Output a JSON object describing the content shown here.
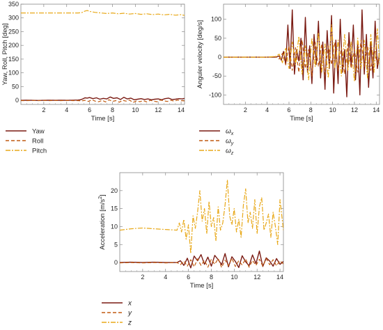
{
  "chart_data": [
    {
      "type": "line",
      "title": "",
      "xlabel": "Time [s]",
      "ylabel": "Yaw, Roll, Pitch [deg]",
      "xlim": [
        0,
        14.3
      ],
      "ylim": [
        -15,
        350
      ],
      "xticks": [
        2,
        4,
        6,
        8,
        10,
        12,
        14
      ],
      "yticks": [
        0,
        50,
        100,
        150,
        200,
        250,
        300,
        350
      ],
      "legend_position": "below",
      "series": [
        {
          "name": "Yaw",
          "color": "#7a1a12",
          "dash": "solid",
          "x": [
            0,
            0.5,
            1,
            1.5,
            2,
            2.5,
            3,
            3.5,
            4,
            4.5,
            5,
            5.2,
            5.4,
            5.6,
            5.8,
            6,
            6.3,
            6.6,
            6.9,
            7.2,
            7.5,
            7.8,
            8.1,
            8.4,
            8.7,
            9,
            9.3,
            9.6,
            9.9,
            10.2,
            10.5,
            10.8,
            11.1,
            11.4,
            11.7,
            12,
            12.3,
            12.6,
            12.9,
            13.2,
            13.5,
            13.8,
            14.1,
            14.3
          ],
          "y": [
            0,
            0.5,
            0,
            -0.5,
            0,
            0.5,
            0,
            0.5,
            0,
            0.5,
            1,
            2,
            5,
            9,
            8,
            10,
            6,
            9,
            4,
            7,
            5,
            12,
            7,
            9,
            3,
            11,
            5,
            8,
            2,
            4,
            6,
            3,
            5,
            2,
            4,
            5,
            2,
            6,
            8,
            3,
            4,
            6,
            5,
            7
          ]
        },
        {
          "name": "Roll",
          "color": "#c05a10",
          "dash": "5,3",
          "x": [
            0,
            0.5,
            1,
            1.5,
            2,
            2.5,
            3,
            3.5,
            4,
            4.5,
            5,
            5.3,
            5.6,
            5.9,
            6.2,
            6.5,
            6.8,
            7.1,
            7.4,
            7.7,
            8,
            8.3,
            8.6,
            8.9,
            9.2,
            9.5,
            9.8,
            10.1,
            10.4,
            10.7,
            11,
            11.3,
            11.6,
            11.9,
            12.2,
            12.5,
            12.8,
            13.1,
            13.4,
            13.7,
            14,
            14.3
          ],
          "y": [
            -1,
            -1,
            -0.5,
            -1,
            -0.5,
            -1,
            -0.5,
            -1,
            -0.5,
            -1,
            -1,
            -2,
            0,
            -4,
            2,
            -3,
            -5,
            0,
            -6,
            2,
            -4,
            -1,
            -7,
            0,
            -3,
            1,
            -8,
            -2,
            -5,
            -1,
            -6,
            0,
            -3,
            -5,
            1,
            -2,
            -4,
            0,
            -3,
            1,
            -1,
            -2
          ]
        },
        {
          "name": "Pitch",
          "color": "#e8a818",
          "dash": "7,2,2,2",
          "x": [
            0,
            0.5,
            1,
            1.5,
            2,
            2.5,
            3,
            3.5,
            4,
            4.5,
            5,
            5.3,
            5.6,
            5.8,
            6,
            6.2,
            6.5,
            7,
            7.5,
            8,
            8.5,
            9,
            9.5,
            10,
            10.5,
            11,
            11.5,
            12,
            12.5,
            13,
            13.5,
            14,
            14.3
          ],
          "y": [
            318,
            318,
            318,
            318,
            318,
            318,
            318,
            318,
            318,
            318,
            318,
            319,
            325,
            327,
            324,
            322,
            320,
            318,
            316,
            318,
            315,
            317,
            314,
            316,
            313,
            315,
            312,
            314,
            311,
            313,
            310,
            312,
            309
          ]
        }
      ]
    },
    {
      "type": "line",
      "title": "",
      "xlabel": "Time [s]",
      "ylabel": "Anguler velocity [deg/s]",
      "xlim": [
        0,
        14.3
      ],
      "ylim": [
        -125,
        140
      ],
      "xticks": [
        2,
        4,
        6,
        8,
        10,
        12,
        14
      ],
      "yticks": [
        -100,
        -50,
        0,
        50,
        100
      ],
      "legend_position": "below",
      "legend_labels": [
        {
          "base": "ω",
          "sub": "x"
        },
        {
          "base": "ω",
          "sub": "y"
        },
        {
          "base": "ω",
          "sub": "z"
        }
      ],
      "series": [
        {
          "name": "ωx",
          "color": "#7a1a12",
          "dash": "solid",
          "x": [
            0,
            1,
            2,
            3,
            4,
            4.8,
            5.1,
            5.3,
            5.5,
            5.7,
            5.9,
            6.1,
            6.3,
            6.5,
            6.7,
            6.9,
            7.1,
            7.3,
            7.5,
            7.7,
            7.9,
            8.1,
            8.3,
            8.5,
            8.7,
            8.9,
            9.1,
            9.3,
            9.5,
            9.7,
            9.9,
            10.1,
            10.3,
            10.5,
            10.7,
            10.9,
            11.1,
            11.3,
            11.5,
            11.7,
            11.9,
            12.1,
            12.3,
            12.5,
            12.7,
            12.9,
            13.1,
            13.3,
            13.5,
            13.7,
            13.9,
            14.1,
            14.3
          ],
          "y": [
            0,
            0,
            0,
            0,
            0,
            0,
            3,
            -8,
            15,
            -20,
            85,
            -30,
            125,
            -45,
            20,
            -10,
            50,
            -60,
            105,
            -40,
            30,
            -70,
            60,
            -20,
            95,
            -55,
            40,
            -85,
            70,
            -30,
            110,
            -95,
            45,
            -70,
            100,
            -40,
            20,
            -105,
            65,
            -25,
            85,
            -60,
            35,
            -100,
            125,
            -45,
            60,
            -80,
            40,
            -55,
            95,
            -30,
            10
          ]
        },
        {
          "name": "ωy",
          "color": "#c05a10",
          "dash": "5,3",
          "x": [
            0,
            1,
            2,
            3,
            4,
            4.8,
            5.1,
            5.4,
            5.7,
            6,
            6.3,
            6.6,
            6.9,
            7.2,
            7.5,
            7.8,
            8.1,
            8.4,
            8.7,
            9,
            9.3,
            9.6,
            9.9,
            10.2,
            10.5,
            10.8,
            11.1,
            11.4,
            11.7,
            12,
            12.3,
            12.6,
            12.9,
            13.2,
            13.5,
            13.8,
            14.1,
            14.3
          ],
          "y": [
            0,
            0,
            0,
            0,
            0,
            1,
            -5,
            10,
            -20,
            30,
            -35,
            25,
            -40,
            45,
            -30,
            20,
            -50,
            40,
            -25,
            35,
            -45,
            30,
            -20,
            40,
            -35,
            25,
            -45,
            35,
            -30,
            20,
            -40,
            45,
            -25,
            30,
            -35,
            25,
            -20,
            15
          ]
        },
        {
          "name": "ωz",
          "color": "#e8a818",
          "dash": "7,2,2,2",
          "x": [
            0,
            1,
            2,
            3,
            4,
            4.8,
            5.1,
            5.4,
            5.7,
            6,
            6.3,
            6.6,
            6.9,
            7.2,
            7.5,
            7.8,
            8.1,
            8.4,
            8.7,
            9,
            9.3,
            9.6,
            9.9,
            10.2,
            10.5,
            10.8,
            11.1,
            11.4,
            11.7,
            12,
            12.3,
            12.6,
            12.9,
            13.2,
            13.5,
            13.8,
            14.1,
            14.3
          ],
          "y": [
            0,
            0,
            0,
            0,
            0,
            2,
            8,
            -15,
            25,
            -30,
            40,
            -20,
            55,
            -45,
            30,
            -60,
            50,
            -25,
            65,
            -40,
            35,
            -55,
            85,
            -30,
            45,
            -50,
            60,
            -35,
            40,
            -65,
            50,
            -30,
            45,
            -55,
            60,
            -40,
            75,
            -20
          ]
        }
      ]
    },
    {
      "type": "line",
      "title": "",
      "xlabel": "Time [s]",
      "ylabel_base": "Acceleration [m/s",
      "ylabel_sup": "2",
      "ylabel_end": "]",
      "xlim": [
        0,
        14.3
      ],
      "ylim": [
        -2.5,
        25
      ],
      "xticks": [
        2,
        4,
        6,
        8,
        10,
        12,
        14
      ],
      "yticks": [
        0,
        5,
        10,
        15,
        20
      ],
      "legend_position": "below",
      "series": [
        {
          "name": "x",
          "color": "#7a1a12",
          "dash": "solid",
          "x": [
            0,
            1,
            2,
            3,
            4,
            5,
            5.3,
            5.6,
            5.9,
            6.2,
            6.5,
            6.8,
            7.1,
            7.4,
            7.7,
            8,
            8.3,
            8.6,
            8.9,
            9.2,
            9.5,
            9.8,
            10.1,
            10.4,
            10.7,
            11,
            11.3,
            11.6,
            11.9,
            12.2,
            12.5,
            12.8,
            13.1,
            13.4,
            13.7,
            14,
            14.3
          ],
          "y": [
            0,
            0.1,
            0,
            0.1,
            0,
            0,
            0.5,
            -0.8,
            1.2,
            -1.5,
            1.8,
            0.5,
            2.2,
            -0.5,
            1.5,
            -1,
            2,
            0.8,
            -0.6,
            2.5,
            -1.2,
            1.6,
            0.3,
            -1.4,
            1.9,
            0.2,
            -0.9,
            2.1,
            -0.3,
            3.2,
            -1.1,
            1.3,
            0.4,
            -1,
            1.1,
            -0.5,
            0.3
          ]
        },
        {
          "name": "y",
          "color": "#c05a10",
          "dash": "5,3",
          "x": [
            0,
            1,
            2,
            3,
            4,
            5,
            5.3,
            5.6,
            5.9,
            6.2,
            6.5,
            6.8,
            7.1,
            7.4,
            7.7,
            8,
            8.3,
            8.6,
            8.9,
            9.2,
            9.5,
            9.8,
            10.1,
            10.4,
            10.7,
            11,
            11.3,
            11.6,
            11.9,
            12.2,
            12.5,
            12.8,
            13.1,
            13.4,
            13.7,
            14,
            14.3
          ],
          "y": [
            -0.1,
            0,
            -0.1,
            0,
            -0.1,
            0,
            -0.6,
            0.4,
            -1,
            0.8,
            -1.2,
            1,
            -0.8,
            0.6,
            -1.3,
            0.9,
            -0.5,
            1.1,
            -1.4,
            0.7,
            -0.9,
            1.2,
            -1.1,
            0.5,
            -0.7,
            1,
            -1.3,
            0.6,
            -0.8,
            0.9,
            -1,
            1.1,
            -0.6,
            0.8,
            -0.9,
            0.5,
            -0.4
          ]
        },
        {
          "name": "z",
          "color": "#e8a818",
          "dash": "7,2,2,2",
          "x": [
            0,
            0.5,
            1,
            1.5,
            2,
            2.5,
            3,
            3.5,
            4,
            4.5,
            5,
            5.2,
            5.4,
            5.6,
            5.8,
            6,
            6.2,
            6.4,
            6.6,
            6.8,
            7,
            7.2,
            7.4,
            7.6,
            7.8,
            8,
            8.2,
            8.4,
            8.6,
            8.8,
            9,
            9.2,
            9.4,
            9.6,
            9.8,
            10,
            10.2,
            10.4,
            10.6,
            10.8,
            11,
            11.2,
            11.4,
            11.6,
            11.8,
            12,
            12.2,
            12.4,
            12.6,
            12.8,
            13,
            13.2,
            13.4,
            13.6,
            13.8,
            14,
            14.3
          ],
          "y": [
            9,
            9.2,
            9.4,
            9.5,
            9.6,
            9.5,
            9.4,
            9.3,
            9.2,
            9.1,
            9,
            11,
            8.5,
            12,
            6.5,
            10.5,
            2.5,
            13,
            9.5,
            14,
            20,
            11.5,
            15,
            8,
            17,
            10,
            12.5,
            6,
            15.5,
            9,
            11,
            16,
            23,
            13,
            10.5,
            15,
            8.5,
            12,
            7,
            16,
            20.5,
            11,
            14,
            9.5,
            17.5,
            8,
            15.5,
            18,
            9,
            11,
            13.5,
            7,
            14,
            10,
            5,
            17.5,
            9
          ]
        }
      ]
    }
  ]
}
